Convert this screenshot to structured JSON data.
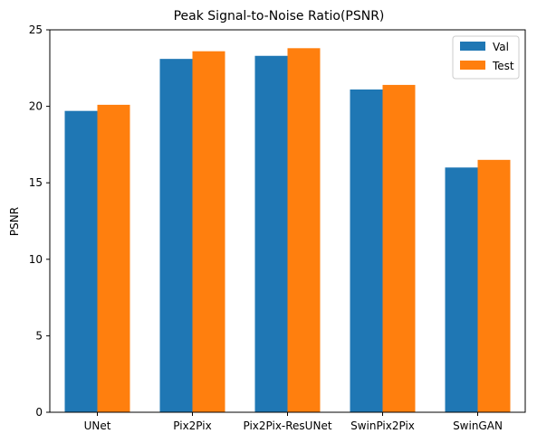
{
  "chart_data": {
    "type": "bar",
    "title": "Peak Signal-to-Noise Ratio(PSNR)",
    "xlabel": "",
    "ylabel": "PSNR",
    "categories": [
      "UNet",
      "Pix2Pix",
      "Pix2Pix-ResUNet",
      "SwinPix2Pix",
      "SwinGAN"
    ],
    "series": [
      {
        "name": "Val",
        "color": "#1f77b4",
        "values": [
          19.7,
          23.1,
          23.3,
          21.1,
          16.0
        ]
      },
      {
        "name": "Test",
        "color": "#ff7f0e",
        "values": [
          20.1,
          23.6,
          23.8,
          21.4,
          16.5
        ]
      }
    ],
    "ylim": [
      0,
      25
    ],
    "yticks": [
      0,
      5,
      10,
      15,
      20,
      25
    ],
    "grid": false,
    "legend_position": "top-right"
  }
}
